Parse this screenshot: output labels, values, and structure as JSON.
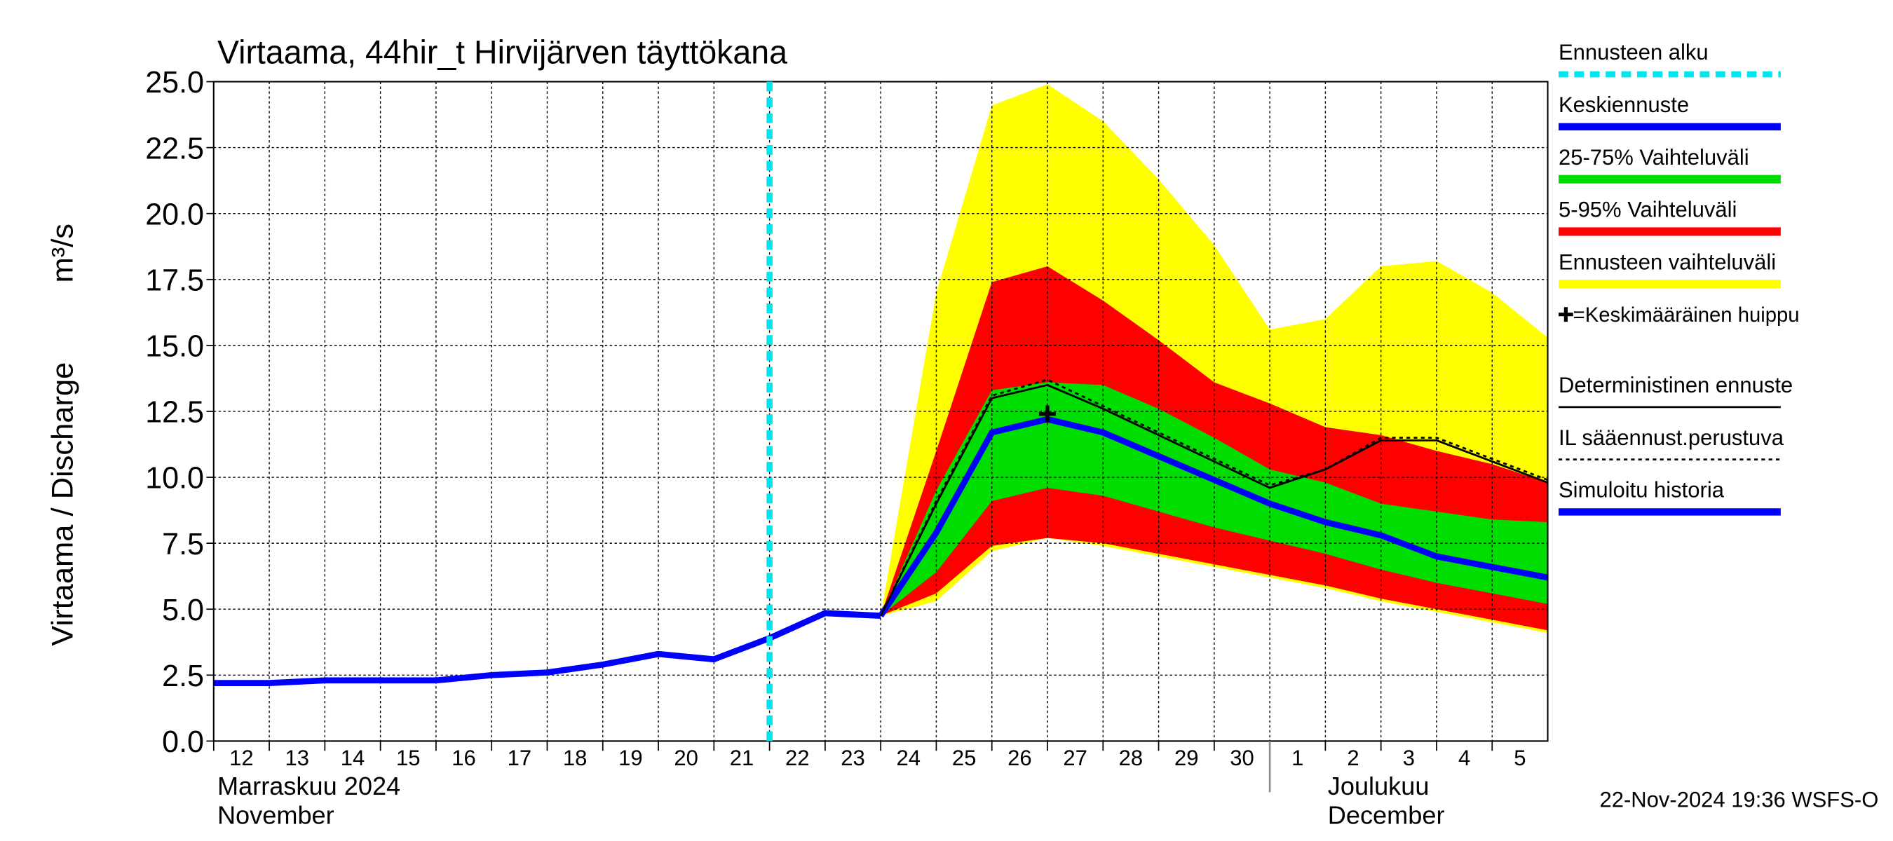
{
  "chart_data": {
    "type": "line",
    "title": "Virtaama, 44hir_t Hirvijärven täyttökana",
    "y_label": "Virtaama / Discharge",
    "y_unit": "m³/s",
    "timestamp": "22-Nov-2024 19:36 WSFS-O",
    "months": [
      {
        "label": "Marraskuu 2024",
        "label_en": "November",
        "start": "2024-11-12"
      },
      {
        "label": "Joulukuu",
        "label_en": "December",
        "start": "2024-12-01"
      }
    ],
    "x": [
      "2024-11-12",
      "2024-11-13",
      "2024-11-14",
      "2024-11-15",
      "2024-11-16",
      "2024-11-17",
      "2024-11-18",
      "2024-11-19",
      "2024-11-20",
      "2024-11-21",
      "2024-11-22",
      "2024-11-23",
      "2024-11-24",
      "2024-11-25",
      "2024-11-26",
      "2024-11-27",
      "2024-11-28",
      "2024-11-29",
      "2024-11-30",
      "2024-12-01",
      "2024-12-02",
      "2024-12-03",
      "2024-12-04",
      "2024-12-05",
      "2024-12-06"
    ],
    "xlim": [
      "2024-11-12",
      "2024-12-06"
    ],
    "xticks": [
      {
        "value": "2024-11-12",
        "label": "12"
      },
      {
        "value": "2024-11-13",
        "label": "13"
      },
      {
        "value": "2024-11-14",
        "label": "14"
      },
      {
        "value": "2024-11-15",
        "label": "15"
      },
      {
        "value": "2024-11-16",
        "label": "16"
      },
      {
        "value": "2024-11-17",
        "label": "17"
      },
      {
        "value": "2024-11-18",
        "label": "18"
      },
      {
        "value": "2024-11-19",
        "label": "19"
      },
      {
        "value": "2024-11-20",
        "label": "20"
      },
      {
        "value": "2024-11-21",
        "label": "21"
      },
      {
        "value": "2024-11-22",
        "label": "22"
      },
      {
        "value": "2024-11-23",
        "label": "23"
      },
      {
        "value": "2024-11-24",
        "label": "24"
      },
      {
        "value": "2024-11-25",
        "label": "25"
      },
      {
        "value": "2024-11-26",
        "label": "26"
      },
      {
        "value": "2024-11-27",
        "label": "27"
      },
      {
        "value": "2024-11-28",
        "label": "28"
      },
      {
        "value": "2024-11-29",
        "label": "29"
      },
      {
        "value": "2024-11-30",
        "label": "30"
      },
      {
        "value": "2024-12-01",
        "label": "1"
      },
      {
        "value": "2024-12-02",
        "label": "2"
      },
      {
        "value": "2024-12-03",
        "label": "3"
      },
      {
        "value": "2024-12-04",
        "label": "4"
      },
      {
        "value": "2024-12-05",
        "label": "5"
      }
    ],
    "ylim": [
      0,
      25
    ],
    "yticks": [
      {
        "value": 0,
        "label": "0.0"
      },
      {
        "value": 2.5,
        "label": "2.5"
      },
      {
        "value": 5,
        "label": "5.0"
      },
      {
        "value": 7.5,
        "label": "7.5"
      },
      {
        "value": 10,
        "label": "10.0"
      },
      {
        "value": 12.5,
        "label": "12.5"
      },
      {
        "value": 15,
        "label": "15.0"
      },
      {
        "value": 17.5,
        "label": "17.5"
      },
      {
        "value": 20,
        "label": "20.0"
      },
      {
        "value": 22.5,
        "label": "22.5"
      },
      {
        "value": 25,
        "label": "25.0"
      }
    ],
    "grid": true,
    "forecast_start": {
      "name": "Ennusteen alku",
      "x": "2024-11-22",
      "color": "#00e5ee"
    },
    "peak": {
      "name": "=Keskimääräinen huippu",
      "x": "2024-11-27",
      "value": 12.4,
      "color": "#000000"
    },
    "series": [
      {
        "name": "Keskiennuste",
        "color": "#0000ff",
        "style": "thick",
        "values": [
          null,
          null,
          null,
          null,
          null,
          null,
          null,
          null,
          null,
          null,
          null,
          null,
          4.75,
          7.9,
          11.7,
          12.2,
          11.7,
          10.8,
          9.9,
          9.0,
          8.3,
          7.8,
          7.0,
          6.6,
          6.2
        ]
      },
      {
        "name": "25-75% Vaihteluväli",
        "color": "#00dd00",
        "style": "band",
        "low": [
          null,
          null,
          null,
          null,
          null,
          null,
          null,
          null,
          null,
          null,
          null,
          null,
          4.75,
          6.4,
          9.1,
          9.6,
          9.3,
          8.7,
          8.1,
          7.6,
          7.1,
          6.5,
          6.0,
          5.6,
          5.2
        ],
        "values": [
          null,
          null,
          null,
          null,
          null,
          null,
          null,
          null,
          null,
          null,
          null,
          null,
          4.75,
          9.5,
          13.3,
          13.6,
          13.5,
          12.6,
          11.5,
          10.3,
          9.8,
          9.0,
          8.7,
          8.4,
          8.3
        ]
      },
      {
        "name": "5-95% Vaihteluväli",
        "color": "#ff0000",
        "style": "band",
        "low": [
          null,
          null,
          null,
          null,
          null,
          null,
          null,
          null,
          null,
          null,
          null,
          null,
          4.75,
          5.6,
          7.4,
          7.7,
          7.5,
          7.1,
          6.7,
          6.3,
          5.9,
          5.4,
          5.0,
          4.6,
          4.2
        ],
        "values": [
          null,
          null,
          null,
          null,
          null,
          null,
          null,
          null,
          null,
          null,
          null,
          null,
          4.75,
          11.0,
          17.4,
          18.0,
          16.7,
          15.2,
          13.6,
          12.8,
          11.9,
          11.6,
          11.0,
          10.5,
          9.8
        ]
      },
      {
        "name": "Ennusteen vaihteluväli",
        "color": "#ffff00",
        "style": "band",
        "low": [
          null,
          null,
          null,
          null,
          null,
          null,
          null,
          null,
          null,
          null,
          null,
          null,
          4.75,
          5.3,
          7.2,
          7.7,
          7.4,
          7.0,
          6.6,
          6.2,
          5.8,
          5.3,
          4.9,
          4.5,
          4.1
        ],
        "values": [
          null,
          null,
          null,
          null,
          null,
          null,
          null,
          null,
          null,
          null,
          null,
          null,
          4.75,
          17.0,
          24.1,
          24.9,
          23.5,
          21.3,
          18.8,
          15.6,
          16.0,
          18.0,
          18.2,
          17.0,
          15.3
        ]
      },
      {
        "name": "Deterministinen ennuste",
        "color": "#000000",
        "style": "thin",
        "values": [
          null,
          null,
          null,
          null,
          null,
          null,
          null,
          null,
          null,
          null,
          null,
          null,
          4.75,
          9.0,
          13.0,
          13.5,
          12.6,
          11.6,
          10.6,
          9.6,
          10.3,
          11.4,
          11.4,
          10.6,
          9.8
        ]
      },
      {
        "name": "IL sääennust.perustuva",
        "color": "#000000",
        "style": "dashed",
        "values": [
          null,
          null,
          null,
          null,
          null,
          null,
          null,
          null,
          null,
          null,
          null,
          null,
          4.75,
          9.1,
          13.1,
          13.7,
          12.7,
          11.7,
          10.7,
          9.7,
          10.3,
          11.5,
          11.5,
          10.7,
          9.9
        ]
      },
      {
        "name": "Simuloitu historia",
        "color": "#0000ff",
        "style": "thick",
        "values": [
          2.2,
          2.2,
          2.3,
          2.3,
          2.3,
          2.5,
          2.6,
          2.9,
          3.3,
          3.1,
          3.9,
          4.85,
          4.75,
          null,
          null,
          null,
          null,
          null,
          null,
          null,
          null,
          null,
          null,
          null,
          null
        ]
      }
    ]
  }
}
